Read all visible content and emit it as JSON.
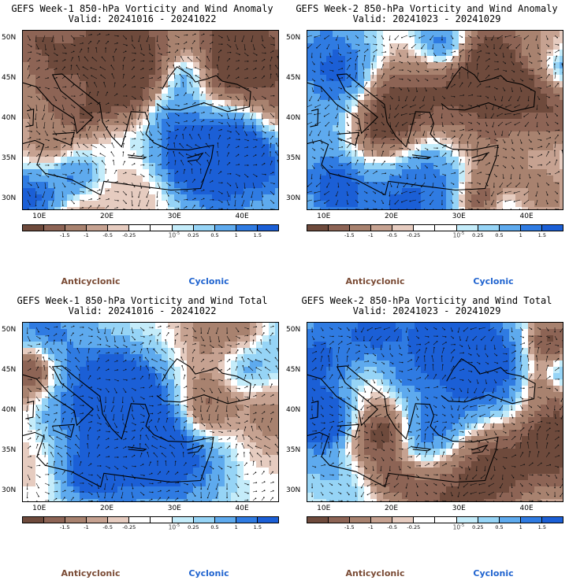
{
  "colors": {
    "scale": [
      "#6e4a3c",
      "#8d6455",
      "#a8826f",
      "#c6a291",
      "#e6ccc0",
      "#ffffff",
      "#ffffff",
      "#c4ecfa",
      "#96d4f6",
      "#5eaaee",
      "#2f7be2",
      "#1b5fd6"
    ],
    "anticyclonic": "#7a4b35",
    "cyclonic": "#1f63cf",
    "land_fill": "#f2f2f2"
  },
  "colorbar": {
    "ticks": [
      "-1.5",
      "-1",
      "-0.5",
      "-0.25",
      "0.25",
      "0.5",
      "1",
      "1.5"
    ],
    "units": "10",
    "units_exp": "-5"
  },
  "axes": {
    "lat_labels": [
      "50N",
      "45N",
      "40N",
      "35N",
      "30N"
    ],
    "lon_labels": [
      "10E",
      "20E",
      "30E",
      "40E"
    ],
    "lon_range": [
      8,
      46
    ],
    "lat_range": [
      28.5,
      51
    ]
  },
  "legend": {
    "anticyclonic": "Anticyclonic",
    "cyclonic": "Cyclonic"
  },
  "panels": [
    {
      "title": "GEFS Week-1 850-hPa Vorticity and Wind Anomaly",
      "valid": "Valid: 20241016 - 20241022"
    },
    {
      "title": "GEFS Week-2 850-hPa Vorticity and Wind Anomaly",
      "valid": "Valid: 20241023 - 20241029"
    },
    {
      "title": "GEFS Week-1 850-hPa Vorticity and Wind Total",
      "valid": "Valid: 20241016 - 20241022"
    },
    {
      "title": "GEFS Week-2 850-hPa Vorticity and Wind Total",
      "valid": "Valid: 20241023 - 20241029"
    }
  ]
}
